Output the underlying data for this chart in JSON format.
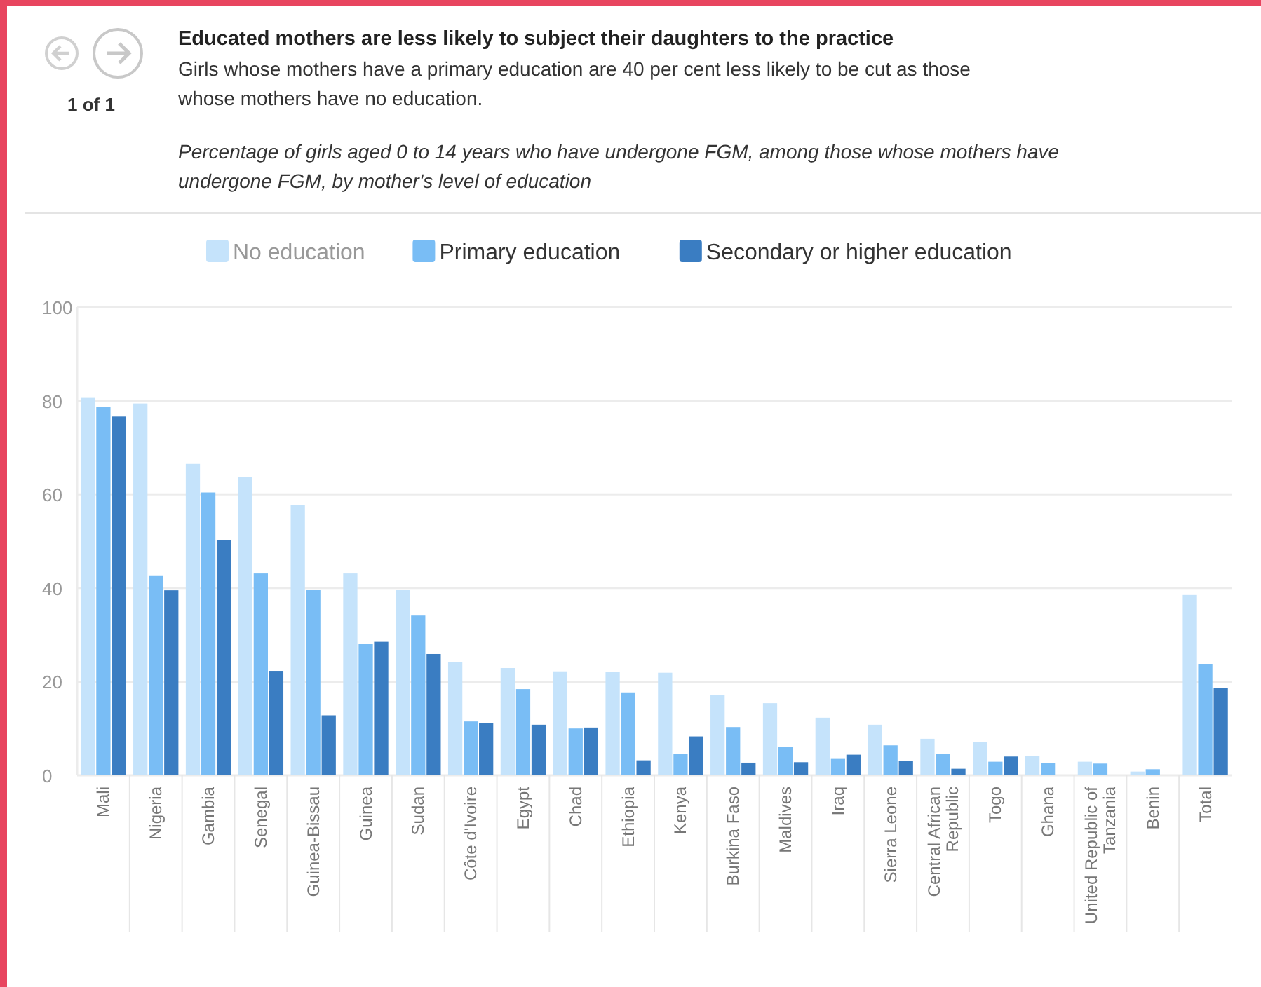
{
  "chart_data": {
    "type": "bar",
    "title": "Educated mothers are less likely to subject their daughters to the practice",
    "subtitle": "Girls whose mothers have a primary education are 40 per cent less likely to be cut as those whose mothers have no education.",
    "annotations": [
      "Percentage of girls aged 0 to 14 years who have undergone FGM, among those whose mothers have undergone FGM, by mother's level of education",
      "1 of 1"
    ],
    "categories": [
      "Mali",
      "Nigeria",
      "Gambia",
      "Senegal",
      "Guinea-Bissau",
      "Guinea",
      "Sudan",
      "Côte d'Ivoire",
      "Egypt",
      "Chad",
      "Ethiopia",
      "Kenya",
      "Burkina Faso",
      "Maldives",
      "Iraq",
      "Sierra Leone",
      "Central African Republic",
      "Togo",
      "Ghana",
      "United Republic of Tanzania",
      "Benin",
      "Total"
    ],
    "series": [
      {
        "name": "No education",
        "color": "#c5e3fb",
        "values": [
          80.6,
          79.4,
          66.5,
          63.7,
          57.7,
          43.1,
          39.6,
          24.1,
          22.9,
          22.2,
          22.1,
          21.9,
          17.2,
          15.4,
          12.3,
          10.8,
          7.8,
          7.1,
          4.1,
          2.9,
          0.8,
          38.5
        ]
      },
      {
        "name": "Primary education",
        "color": "#79bdf5",
        "values": [
          78.7,
          42.7,
          60.4,
          43.1,
          39.6,
          28.1,
          34.1,
          11.5,
          18.4,
          10,
          17.7,
          4.6,
          10.3,
          6,
          3.5,
          6.4,
          4.6,
          2.9,
          2.6,
          2.5,
          1.3,
          23.8
        ]
      },
      {
        "name": "Secondary or higher education",
        "color": "#3a7dc2",
        "values": [
          76.6,
          39.5,
          50.2,
          22.3,
          12.8,
          28.5,
          25.9,
          11.2,
          10.8,
          10.2,
          3.2,
          8.3,
          2.7,
          2.8,
          4.4,
          3.1,
          1.4,
          4,
          null,
          null,
          null,
          18.7
        ]
      }
    ],
    "ylim": [
      0,
      100
    ],
    "yticks": [
      0,
      20,
      40,
      60,
      80,
      100
    ],
    "grid": "y",
    "legend": "top"
  }
}
